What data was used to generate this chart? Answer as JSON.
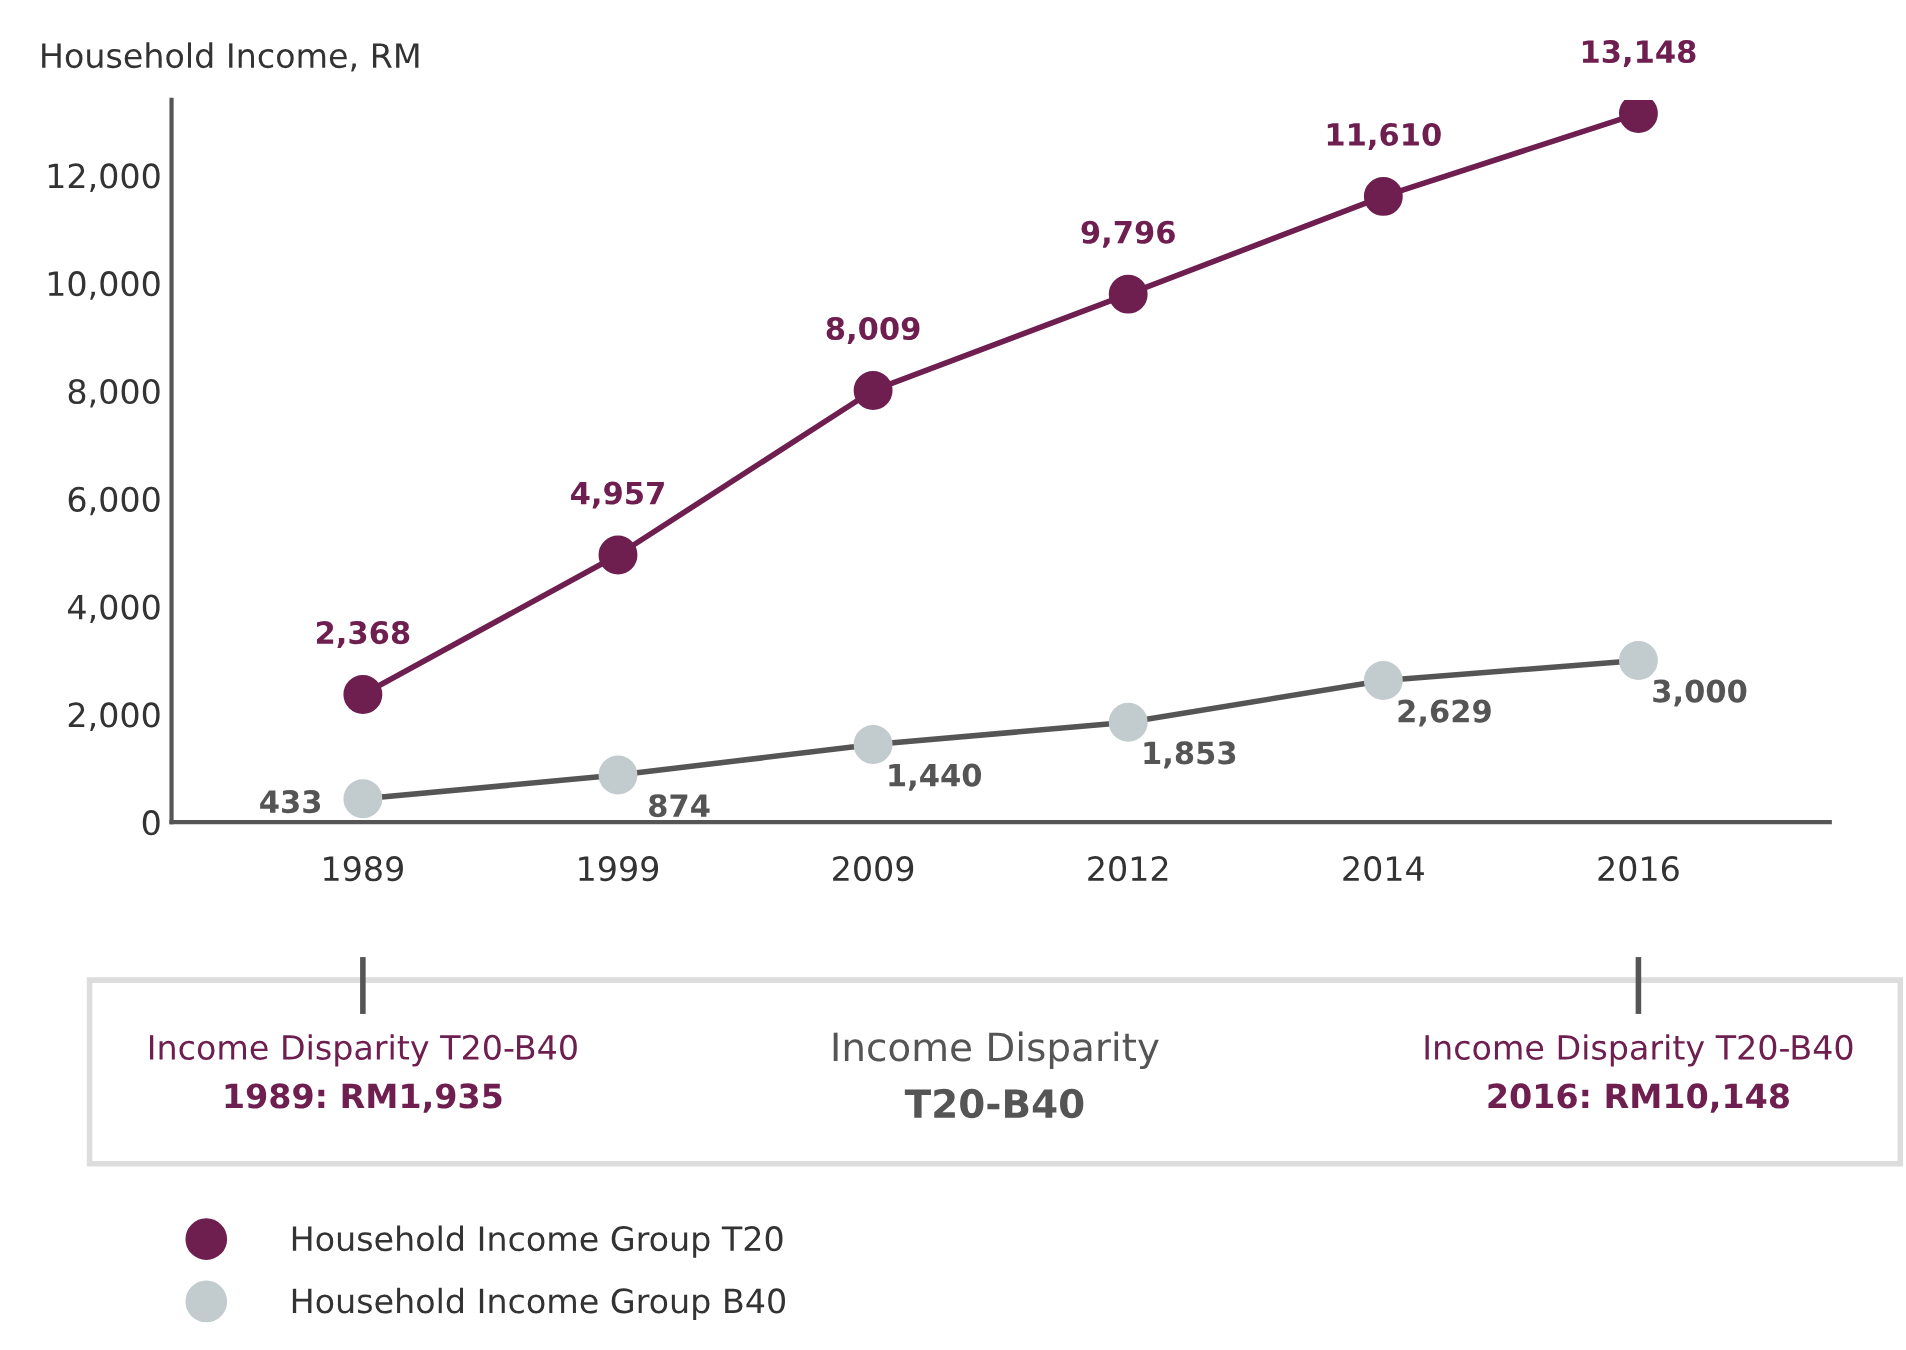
{
  "chart_data": {
    "type": "line",
    "ylabel": "Household Income, RM",
    "categories": [
      "1989",
      "1999",
      "2009",
      "2012",
      "2014",
      "2016"
    ],
    "series": [
      {
        "name": "Household Income Group T20",
        "color": "#6e1f4f",
        "values": [
          2368,
          4957,
          8009,
          9796,
          11610,
          13148
        ],
        "value_labels": [
          "2,368",
          "4,957",
          "8,009",
          "9,796",
          "11,610",
          "13,148"
        ]
      },
      {
        "name": "Household Income Group B40",
        "color": "#c2cbcd",
        "values": [
          433,
          874,
          1440,
          1853,
          2629,
          3000
        ],
        "value_labels": [
          "433",
          "874",
          "1,440",
          "1,853",
          "2,629",
          "3,000"
        ]
      }
    ],
    "ylim": [
      0,
      13400
    ],
    "yticks": [
      0,
      {
        "value": 2000,
        "label": "2,000"
      },
      {
        "value": 4000,
        "label": "4,000"
      },
      {
        "value": 6000,
        "label": "6,000"
      },
      {
        "value": 8000,
        "label": "8,000"
      },
      {
        "value": 10000,
        "label": "10,000"
      },
      {
        "value": 12000,
        "label": "12,000"
      }
    ],
    "grid": false,
    "legend": "bottom",
    "marker": "circle",
    "line_style": "solid",
    "annotations": [
      {
        "text": "Income Disparity T20-B40\n1989: RM1,935",
        "x": "1989"
      },
      "Income Disparity\nT20-B40",
      {
        "text": "Income Disparity T20-B40\n2016: RM10,148",
        "x": "2016"
      }
    ]
  }
}
